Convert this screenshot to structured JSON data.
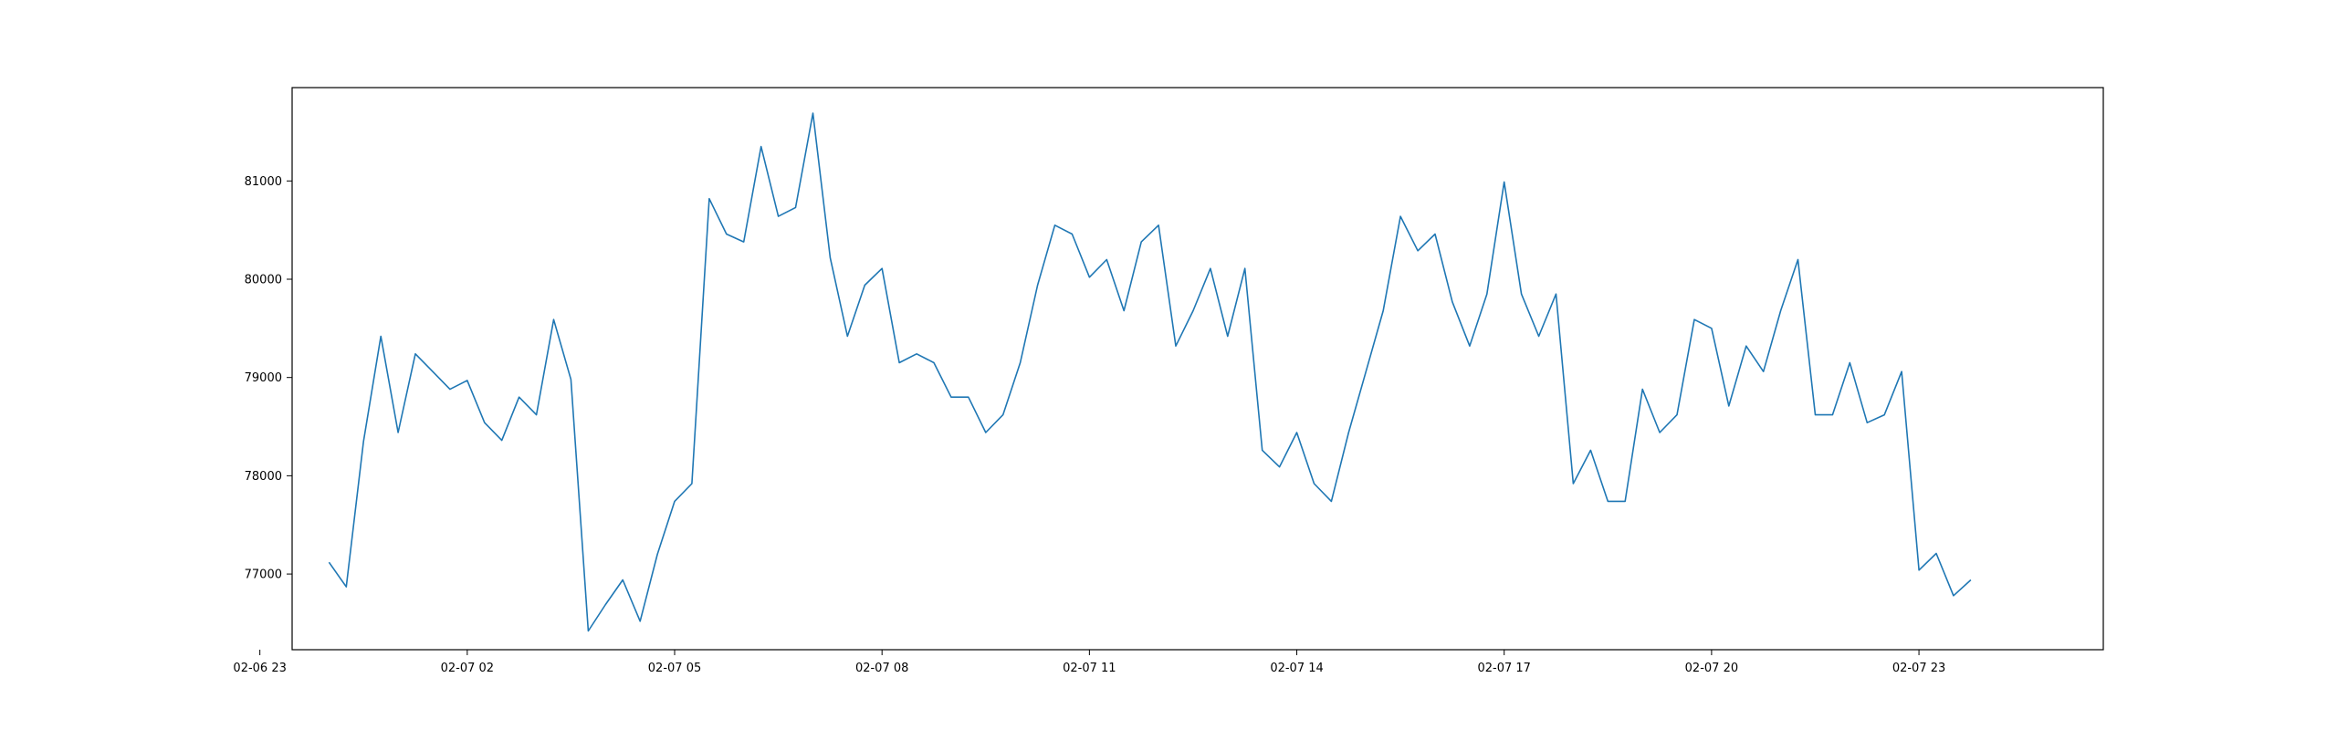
{
  "chart_data": {
    "type": "line",
    "title": "",
    "xlabel": "",
    "ylabel": "",
    "grid": false,
    "legend": "none",
    "x_range": [
      "02-06 23:28",
      "02-08 01:40"
    ],
    "ylim": [
      76230,
      81950
    ],
    "x_ticks": [
      {
        "label": "02-06 23",
        "time": "02-06 23:00"
      },
      {
        "label": "02-07 02",
        "time": "02-07 02:00"
      },
      {
        "label": "02-07 05",
        "time": "02-07 05:00"
      },
      {
        "label": "02-07 08",
        "time": "02-07 08:00"
      },
      {
        "label": "02-07 11",
        "time": "02-07 11:00"
      },
      {
        "label": "02-07 14",
        "time": "02-07 14:00"
      },
      {
        "label": "02-07 17",
        "time": "02-07 17:00"
      },
      {
        "label": "02-07 20",
        "time": "02-07 20:00"
      },
      {
        "label": "02-07 23",
        "time": "02-07 23:00"
      }
    ],
    "y_ticks": [
      77000,
      78000,
      79000,
      80000,
      81000
    ],
    "series": [
      {
        "color": "#1f77b4",
        "points": [
          [
            "02-07 00:00",
            77120
          ],
          [
            "02-07 00:15",
            76870
          ],
          [
            "02-07 00:30",
            78350
          ],
          [
            "02-07 00:45",
            79420
          ],
          [
            "02-07 01:00",
            78440
          ],
          [
            "02-07 01:15",
            79240
          ],
          [
            "02-07 01:30",
            79060
          ],
          [
            "02-07 01:45",
            78880
          ],
          [
            "02-07 02:00",
            78970
          ],
          [
            "02-07 02:15",
            78540
          ],
          [
            "02-07 02:30",
            78360
          ],
          [
            "02-07 02:45",
            78800
          ],
          [
            "02-07 03:00",
            78620
          ],
          [
            "02-07 03:15",
            79590
          ],
          [
            "02-07 03:30",
            78980
          ],
          [
            "02-07 03:45",
            76420
          ],
          [
            "02-07 04:00",
            76690
          ],
          [
            "02-07 04:15",
            76940
          ],
          [
            "02-07 04:30",
            76520
          ],
          [
            "02-07 04:45",
            77200
          ],
          [
            "02-07 05:00",
            77740
          ],
          [
            "02-07 05:15",
            77920
          ],
          [
            "02-07 05:30",
            80820
          ],
          [
            "02-07 05:45",
            80460
          ],
          [
            "02-07 06:00",
            80380
          ],
          [
            "02-07 06:15",
            81350
          ],
          [
            "02-07 06:30",
            80640
          ],
          [
            "02-07 06:45",
            80730
          ],
          [
            "02-07 07:00",
            81690
          ],
          [
            "02-07 07:15",
            80220
          ],
          [
            "02-07 07:30",
            79420
          ],
          [
            "02-07 07:45",
            79940
          ],
          [
            "02-07 08:00",
            80110
          ],
          [
            "02-07 08:15",
            79150
          ],
          [
            "02-07 08:30",
            79240
          ],
          [
            "02-07 08:45",
            79150
          ],
          [
            "02-07 09:00",
            78800
          ],
          [
            "02-07 09:15",
            78800
          ],
          [
            "02-07 09:30",
            78440
          ],
          [
            "02-07 09:45",
            78620
          ],
          [
            "02-07 10:00",
            79150
          ],
          [
            "02-07 10:15",
            79940
          ],
          [
            "02-07 10:30",
            80550
          ],
          [
            "02-07 10:45",
            80460
          ],
          [
            "02-07 11:00",
            80020
          ],
          [
            "02-07 11:15",
            80200
          ],
          [
            "02-07 11:30",
            79680
          ],
          [
            "02-07 11:45",
            80380
          ],
          [
            "02-07 12:00",
            80550
          ],
          [
            "02-07 12:15",
            79320
          ],
          [
            "02-07 12:30",
            79680
          ],
          [
            "02-07 12:45",
            80110
          ],
          [
            "02-07 13:00",
            79420
          ],
          [
            "02-07 13:15",
            80110
          ],
          [
            "02-07 13:30",
            78260
          ],
          [
            "02-07 13:45",
            78090
          ],
          [
            "02-07 14:00",
            78440
          ],
          [
            "02-07 14:15",
            77920
          ],
          [
            "02-07 14:30",
            77740
          ],
          [
            "02-07 14:45",
            78440
          ],
          [
            "02-07 15:00",
            79060
          ],
          [
            "02-07 15:15",
            79680
          ],
          [
            "02-07 15:30",
            80640
          ],
          [
            "02-07 15:45",
            80290
          ],
          [
            "02-07 16:00",
            80460
          ],
          [
            "02-07 16:15",
            79770
          ],
          [
            "02-07 16:30",
            79320
          ],
          [
            "02-07 16:45",
            79850
          ],
          [
            "02-07 17:00",
            80990
          ],
          [
            "02-07 17:15",
            79850
          ],
          [
            "02-07 17:30",
            79420
          ],
          [
            "02-07 17:45",
            79850
          ],
          [
            "02-07 18:00",
            77920
          ],
          [
            "02-07 18:15",
            78260
          ],
          [
            "02-07 18:30",
            77740
          ],
          [
            "02-07 18:45",
            77740
          ],
          [
            "02-07 19:00",
            78880
          ],
          [
            "02-07 19:15",
            78440
          ],
          [
            "02-07 19:30",
            78620
          ],
          [
            "02-07 19:45",
            79590
          ],
          [
            "02-07 20:00",
            79500
          ],
          [
            "02-07 20:15",
            78710
          ],
          [
            "02-07 20:30",
            79320
          ],
          [
            "02-07 20:45",
            79060
          ],
          [
            "02-07 21:00",
            79680
          ],
          [
            "02-07 21:15",
            80200
          ],
          [
            "02-07 21:30",
            78620
          ],
          [
            "02-07 21:45",
            78620
          ],
          [
            "02-07 22:00",
            79150
          ],
          [
            "02-07 22:15",
            78540
          ],
          [
            "02-07 22:30",
            78620
          ],
          [
            "02-07 22:45",
            79060
          ],
          [
            "02-07 23:00",
            77040
          ],
          [
            "02-07 23:15",
            77210
          ],
          [
            "02-07 23:30",
            76780
          ],
          [
            "02-07 23:45",
            76940
          ]
        ]
      }
    ]
  }
}
